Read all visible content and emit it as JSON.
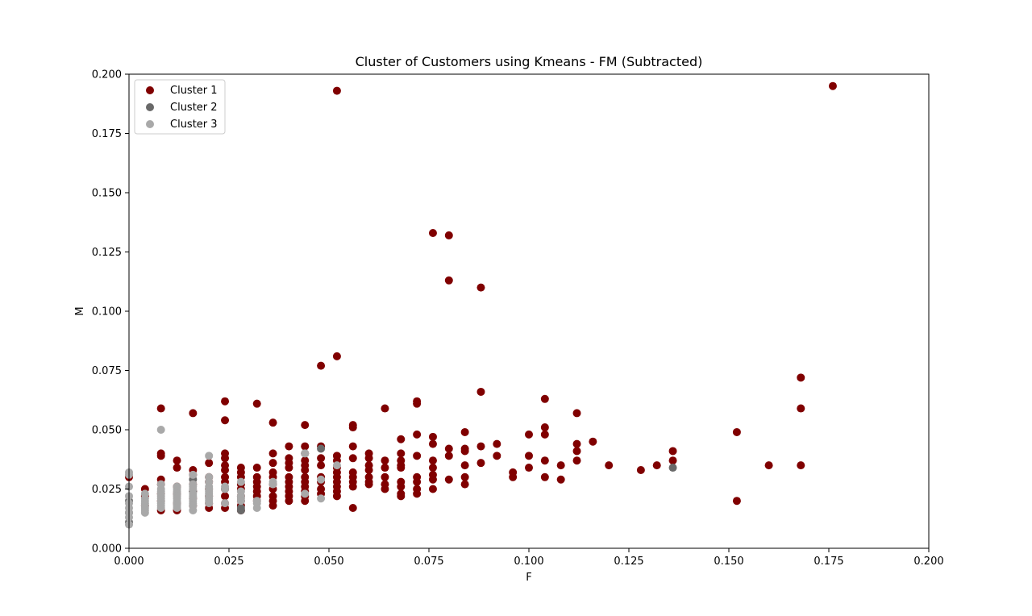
{
  "chart_data": {
    "type": "scatter",
    "title": "Cluster of Customers using Kmeans - FM (Subtracted)",
    "xlabel": "F",
    "ylabel": "M",
    "xlim": [
      0,
      0.2
    ],
    "ylim": [
      0,
      0.2
    ],
    "xticks": [
      "0.000",
      "0.025",
      "0.050",
      "0.075",
      "0.100",
      "0.125",
      "0.150",
      "0.175",
      "0.200"
    ],
    "yticks": [
      "0.000",
      "0.025",
      "0.050",
      "0.075",
      "0.100",
      "0.125",
      "0.150",
      "0.175",
      "0.200"
    ],
    "grid": false,
    "legend_position": "upper-left",
    "series": [
      {
        "name": "Cluster 1",
        "color": "#800000",
        "points": [
          [
            0.0,
            0.03
          ],
          [
            0.004,
            0.025
          ],
          [
            0.004,
            0.022
          ],
          [
            0.004,
            0.018
          ],
          [
            0.008,
            0.059
          ],
          [
            0.008,
            0.04
          ],
          [
            0.008,
            0.039
          ],
          [
            0.008,
            0.029
          ],
          [
            0.008,
            0.027
          ],
          [
            0.008,
            0.023
          ],
          [
            0.008,
            0.02
          ],
          [
            0.008,
            0.016
          ],
          [
            0.012,
            0.037
          ],
          [
            0.012,
            0.034
          ],
          [
            0.012,
            0.026
          ],
          [
            0.012,
            0.023
          ],
          [
            0.012,
            0.019
          ],
          [
            0.012,
            0.016
          ],
          [
            0.016,
            0.057
          ],
          [
            0.016,
            0.033
          ],
          [
            0.016,
            0.031
          ],
          [
            0.016,
            0.027
          ],
          [
            0.016,
            0.024
          ],
          [
            0.016,
            0.021
          ],
          [
            0.016,
            0.018
          ],
          [
            0.02,
            0.036
          ],
          [
            0.02,
            0.03
          ],
          [
            0.02,
            0.028
          ],
          [
            0.02,
            0.025
          ],
          [
            0.02,
            0.022
          ],
          [
            0.02,
            0.019
          ],
          [
            0.02,
            0.017
          ],
          [
            0.024,
            0.062
          ],
          [
            0.024,
            0.054
          ],
          [
            0.024,
            0.04
          ],
          [
            0.024,
            0.038
          ],
          [
            0.024,
            0.035
          ],
          [
            0.024,
            0.033
          ],
          [
            0.024,
            0.03
          ],
          [
            0.024,
            0.028
          ],
          [
            0.024,
            0.025
          ],
          [
            0.024,
            0.022
          ],
          [
            0.024,
            0.019
          ],
          [
            0.024,
            0.017
          ],
          [
            0.028,
            0.034
          ],
          [
            0.028,
            0.032
          ],
          [
            0.028,
            0.03
          ],
          [
            0.028,
            0.027
          ],
          [
            0.028,
            0.025
          ],
          [
            0.028,
            0.022
          ],
          [
            0.028,
            0.02
          ],
          [
            0.028,
            0.018
          ],
          [
            0.028,
            0.016
          ],
          [
            0.032,
            0.061
          ],
          [
            0.032,
            0.034
          ],
          [
            0.032,
            0.03
          ],
          [
            0.032,
            0.028
          ],
          [
            0.032,
            0.026
          ],
          [
            0.032,
            0.024
          ],
          [
            0.032,
            0.022
          ],
          [
            0.032,
            0.02
          ],
          [
            0.036,
            0.053
          ],
          [
            0.036,
            0.04
          ],
          [
            0.036,
            0.036
          ],
          [
            0.036,
            0.032
          ],
          [
            0.036,
            0.03
          ],
          [
            0.036,
            0.027
          ],
          [
            0.036,
            0.025
          ],
          [
            0.036,
            0.022
          ],
          [
            0.036,
            0.02
          ],
          [
            0.036,
            0.018
          ],
          [
            0.04,
            0.043
          ],
          [
            0.04,
            0.038
          ],
          [
            0.04,
            0.036
          ],
          [
            0.04,
            0.034
          ],
          [
            0.04,
            0.03
          ],
          [
            0.04,
            0.028
          ],
          [
            0.04,
            0.026
          ],
          [
            0.04,
            0.024
          ],
          [
            0.04,
            0.022
          ],
          [
            0.04,
            0.02
          ],
          [
            0.044,
            0.052
          ],
          [
            0.044,
            0.043
          ],
          [
            0.044,
            0.04
          ],
          [
            0.044,
            0.037
          ],
          [
            0.044,
            0.035
          ],
          [
            0.044,
            0.033
          ],
          [
            0.044,
            0.03
          ],
          [
            0.044,
            0.028
          ],
          [
            0.044,
            0.026
          ],
          [
            0.044,
            0.024
          ],
          [
            0.044,
            0.022
          ],
          [
            0.044,
            0.02
          ],
          [
            0.048,
            0.077
          ],
          [
            0.048,
            0.043
          ],
          [
            0.048,
            0.038
          ],
          [
            0.048,
            0.035
          ],
          [
            0.048,
            0.03
          ],
          [
            0.048,
            0.028
          ],
          [
            0.048,
            0.025
          ],
          [
            0.048,
            0.023
          ],
          [
            0.052,
            0.193
          ],
          [
            0.052,
            0.081
          ],
          [
            0.052,
            0.039
          ],
          [
            0.052,
            0.037
          ],
          [
            0.052,
            0.034
          ],
          [
            0.052,
            0.032
          ],
          [
            0.052,
            0.03
          ],
          [
            0.052,
            0.028
          ],
          [
            0.052,
            0.026
          ],
          [
            0.052,
            0.024
          ],
          [
            0.052,
            0.022
          ],
          [
            0.056,
            0.052
          ],
          [
            0.056,
            0.051
          ],
          [
            0.056,
            0.043
          ],
          [
            0.056,
            0.038
          ],
          [
            0.056,
            0.032
          ],
          [
            0.056,
            0.03
          ],
          [
            0.056,
            0.028
          ],
          [
            0.056,
            0.026
          ],
          [
            0.056,
            0.017
          ],
          [
            0.06,
            0.04
          ],
          [
            0.06,
            0.038
          ],
          [
            0.06,
            0.035
          ],
          [
            0.06,
            0.033
          ],
          [
            0.06,
            0.03
          ],
          [
            0.06,
            0.028
          ],
          [
            0.06,
            0.027
          ],
          [
            0.064,
            0.059
          ],
          [
            0.064,
            0.037
          ],
          [
            0.064,
            0.034
          ],
          [
            0.064,
            0.03
          ],
          [
            0.064,
            0.027
          ],
          [
            0.064,
            0.025
          ],
          [
            0.068,
            0.046
          ],
          [
            0.068,
            0.04
          ],
          [
            0.068,
            0.037
          ],
          [
            0.068,
            0.035
          ],
          [
            0.068,
            0.034
          ],
          [
            0.068,
            0.028
          ],
          [
            0.068,
            0.026
          ],
          [
            0.068,
            0.023
          ],
          [
            0.068,
            0.022
          ],
          [
            0.072,
            0.062
          ],
          [
            0.072,
            0.061
          ],
          [
            0.072,
            0.048
          ],
          [
            0.072,
            0.039
          ],
          [
            0.072,
            0.03
          ],
          [
            0.072,
            0.028
          ],
          [
            0.072,
            0.025
          ],
          [
            0.072,
            0.023
          ],
          [
            0.076,
            0.133
          ],
          [
            0.076,
            0.047
          ],
          [
            0.076,
            0.044
          ],
          [
            0.076,
            0.037
          ],
          [
            0.076,
            0.034
          ],
          [
            0.076,
            0.031
          ],
          [
            0.076,
            0.029
          ],
          [
            0.076,
            0.025
          ],
          [
            0.08,
            0.132
          ],
          [
            0.08,
            0.113
          ],
          [
            0.08,
            0.042
          ],
          [
            0.08,
            0.039
          ],
          [
            0.08,
            0.029
          ],
          [
            0.084,
            0.049
          ],
          [
            0.084,
            0.042
          ],
          [
            0.084,
            0.041
          ],
          [
            0.084,
            0.035
          ],
          [
            0.084,
            0.03
          ],
          [
            0.084,
            0.027
          ],
          [
            0.088,
            0.11
          ],
          [
            0.088,
            0.066
          ],
          [
            0.088,
            0.043
          ],
          [
            0.088,
            0.036
          ],
          [
            0.092,
            0.044
          ],
          [
            0.092,
            0.039
          ],
          [
            0.096,
            0.032
          ],
          [
            0.096,
            0.03
          ],
          [
            0.1,
            0.048
          ],
          [
            0.1,
            0.039
          ],
          [
            0.1,
            0.034
          ],
          [
            0.104,
            0.063
          ],
          [
            0.104,
            0.051
          ],
          [
            0.104,
            0.048
          ],
          [
            0.104,
            0.037
          ],
          [
            0.104,
            0.03
          ],
          [
            0.108,
            0.035
          ],
          [
            0.108,
            0.029
          ],
          [
            0.112,
            0.057
          ],
          [
            0.112,
            0.044
          ],
          [
            0.112,
            0.041
          ],
          [
            0.112,
            0.037
          ],
          [
            0.116,
            0.045
          ],
          [
            0.12,
            0.035
          ],
          [
            0.128,
            0.033
          ],
          [
            0.132,
            0.035
          ],
          [
            0.136,
            0.041
          ],
          [
            0.136,
            0.037
          ],
          [
            0.152,
            0.049
          ],
          [
            0.152,
            0.02
          ],
          [
            0.16,
            0.035
          ],
          [
            0.168,
            0.072
          ],
          [
            0.168,
            0.059
          ],
          [
            0.168,
            0.035
          ],
          [
            0.176,
            0.195
          ]
        ]
      },
      {
        "name": "Cluster 2",
        "color": "#696969",
        "points": [
          [
            0.0,
            0.02
          ],
          [
            0.0,
            0.015
          ],
          [
            0.0,
            0.011
          ],
          [
            0.016,
            0.029
          ],
          [
            0.016,
            0.024
          ],
          [
            0.028,
            0.016
          ],
          [
            0.028,
            0.017
          ],
          [
            0.044,
            0.04
          ],
          [
            0.048,
            0.042
          ],
          [
            0.136,
            0.034
          ]
        ]
      },
      {
        "name": "Cluster 3",
        "color": "#a9a9a9",
        "points": [
          [
            0.0,
            0.032
          ],
          [
            0.0,
            0.031
          ],
          [
            0.0,
            0.026
          ],
          [
            0.0,
            0.022
          ],
          [
            0.0,
            0.019
          ],
          [
            0.0,
            0.017
          ],
          [
            0.0,
            0.015
          ],
          [
            0.0,
            0.013
          ],
          [
            0.0,
            0.01
          ],
          [
            0.004,
            0.023
          ],
          [
            0.004,
            0.021
          ],
          [
            0.004,
            0.02
          ],
          [
            0.004,
            0.019
          ],
          [
            0.004,
            0.018
          ],
          [
            0.004,
            0.017
          ],
          [
            0.004,
            0.016
          ],
          [
            0.004,
            0.015
          ],
          [
            0.008,
            0.05
          ],
          [
            0.008,
            0.027
          ],
          [
            0.008,
            0.025
          ],
          [
            0.008,
            0.024
          ],
          [
            0.008,
            0.023
          ],
          [
            0.008,
            0.022
          ],
          [
            0.008,
            0.021
          ],
          [
            0.008,
            0.02
          ],
          [
            0.008,
            0.019
          ],
          [
            0.008,
            0.018
          ],
          [
            0.008,
            0.017
          ],
          [
            0.012,
            0.026
          ],
          [
            0.012,
            0.025
          ],
          [
            0.012,
            0.024
          ],
          [
            0.012,
            0.023
          ],
          [
            0.012,
            0.022
          ],
          [
            0.012,
            0.021
          ],
          [
            0.012,
            0.02
          ],
          [
            0.012,
            0.019
          ],
          [
            0.012,
            0.018
          ],
          [
            0.012,
            0.017
          ],
          [
            0.016,
            0.031
          ],
          [
            0.016,
            0.027
          ],
          [
            0.016,
            0.026
          ],
          [
            0.016,
            0.025
          ],
          [
            0.016,
            0.023
          ],
          [
            0.016,
            0.022
          ],
          [
            0.016,
            0.021
          ],
          [
            0.016,
            0.02
          ],
          [
            0.016,
            0.019
          ],
          [
            0.016,
            0.018
          ],
          [
            0.016,
            0.016
          ],
          [
            0.02,
            0.039
          ],
          [
            0.02,
            0.03
          ],
          [
            0.02,
            0.028
          ],
          [
            0.02,
            0.026
          ],
          [
            0.02,
            0.025
          ],
          [
            0.02,
            0.024
          ],
          [
            0.02,
            0.023
          ],
          [
            0.02,
            0.022
          ],
          [
            0.02,
            0.021
          ],
          [
            0.02,
            0.02
          ],
          [
            0.02,
            0.019
          ],
          [
            0.024,
            0.026
          ],
          [
            0.024,
            0.025
          ],
          [
            0.024,
            0.019
          ],
          [
            0.028,
            0.028
          ],
          [
            0.028,
            0.024
          ],
          [
            0.028,
            0.022
          ],
          [
            0.028,
            0.021
          ],
          [
            0.028,
            0.02
          ],
          [
            0.032,
            0.02
          ],
          [
            0.032,
            0.019
          ],
          [
            0.032,
            0.017
          ],
          [
            0.036,
            0.028
          ],
          [
            0.036,
            0.027
          ],
          [
            0.044,
            0.04
          ],
          [
            0.044,
            0.023
          ],
          [
            0.048,
            0.029
          ],
          [
            0.048,
            0.021
          ],
          [
            0.052,
            0.035
          ]
        ]
      }
    ]
  }
}
